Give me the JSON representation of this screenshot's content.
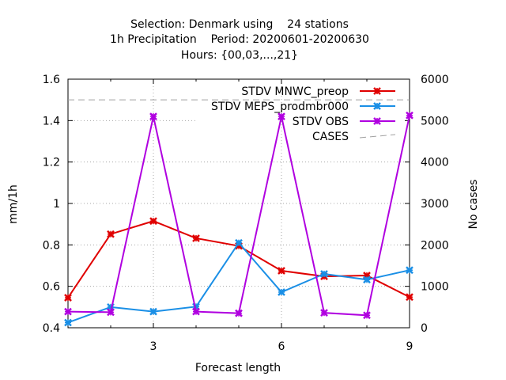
{
  "chart_data": {
    "type": "line",
    "title_lines": [
      "Selection: Denmark using    24 stations",
      "1h Precipitation    Period: 20200601-20200630",
      "Hours: {00,03,...,21}"
    ],
    "xlabel": "Forecast length",
    "ylabel": "mm/1h",
    "y2label": "No cases",
    "xlim": [
      1,
      9
    ],
    "ylim": [
      0.4,
      1.6
    ],
    "y2lim": [
      0,
      6000
    ],
    "xticks": [
      3,
      6,
      9
    ],
    "yticks": [
      0.4,
      0.6,
      0.8,
      1.0,
      1.2,
      1.4,
      1.6
    ],
    "ytick_labels": [
      "0.4",
      "0.6",
      "0.8",
      "1",
      "1.2",
      "1.4",
      "1.6"
    ],
    "y2ticks": [
      0,
      1000,
      2000,
      3000,
      4000,
      5000,
      6000
    ],
    "grid": true,
    "legend_position": "top-right",
    "x": [
      1,
      2,
      3,
      4,
      5,
      6,
      7,
      8,
      9
    ],
    "series": [
      {
        "name": "STDV MNWC_preop",
        "color": "#e00000",
        "axis": "y",
        "values": [
          0.545,
          0.852,
          0.915,
          0.832,
          0.795,
          0.675,
          0.648,
          0.652,
          0.548
        ]
      },
      {
        "name": "STDV MEPS_prodmbr000",
        "color": "#1a8fe6",
        "axis": "y",
        "values": [
          0.425,
          0.5,
          0.478,
          0.502,
          0.81,
          0.572,
          0.66,
          0.632,
          0.678
        ]
      },
      {
        "name": "STDV OBS",
        "color": "#b000e0",
        "axis": "y",
        "values": [
          0.478,
          0.475,
          1.42,
          0.478,
          0.47,
          1.42,
          0.472,
          0.46,
          1.425
        ]
      },
      {
        "name": "CASES",
        "color": "#a0a0a0",
        "axis": "y2",
        "dashed": true,
        "values": [
          5500,
          5500,
          5500,
          5500,
          5500,
          5500,
          5500,
          5500,
          5500
        ]
      }
    ]
  }
}
